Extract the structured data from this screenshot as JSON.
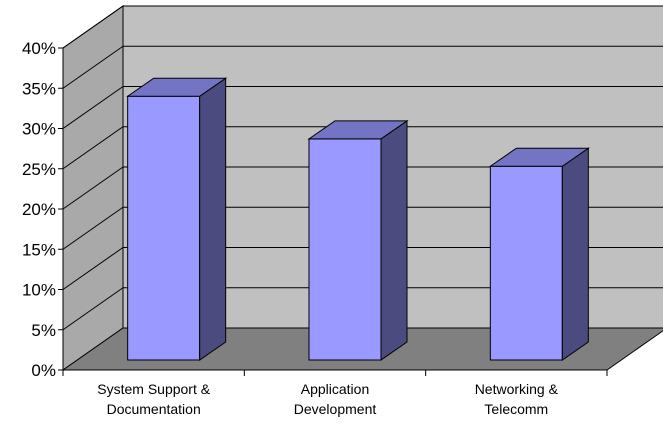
{
  "chart_data": {
    "type": "bar",
    "title": "",
    "xlabel": "",
    "ylabel": "",
    "ylim": [
      0,
      40
    ],
    "y_ticks": [
      "0%",
      "5%",
      "10%",
      "15%",
      "20%",
      "25%",
      "30%",
      "35%",
      "40%"
    ],
    "categories": [
      [
        "System Support &",
        "Documentation"
      ],
      [
        "Application",
        "Development"
      ],
      [
        "Networking &",
        "Telecomm"
      ]
    ],
    "values": [
      35.5,
      30.2,
      26.8
    ],
    "grid": true,
    "legend": "none",
    "style": "3d-column",
    "colors": {
      "bar_front": "#9999FF",
      "bar_side": "#4B4B7F",
      "bar_top": "#7474C4",
      "back_wall": "#C0C0C0",
      "side_wall": "#A9A9A9",
      "floor": "#808080"
    }
  }
}
